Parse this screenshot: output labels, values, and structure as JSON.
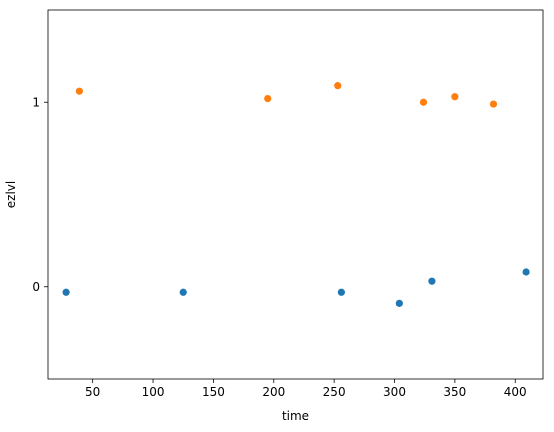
{
  "chart_data": {
    "type": "scatter",
    "title": "",
    "xlabel": "time",
    "ylabel": "ezlvl",
    "xlim": [
      13,
      423
    ],
    "ylim": [
      1.5,
      -0.5
    ],
    "y_axis_inverted": true,
    "y_categorical": true,
    "xticks": [
      50,
      100,
      150,
      200,
      250,
      300,
      350,
      400
    ],
    "yticks": [
      0,
      1
    ],
    "grid": false,
    "legend": "none",
    "series": [
      {
        "color": "#1f77b4",
        "points": [
          {
            "x": 28,
            "y": -0.03
          },
          {
            "x": 125,
            "y": -0.03
          },
          {
            "x": 256,
            "y": -0.03
          },
          {
            "x": 304,
            "y": -0.09
          },
          {
            "x": 331,
            "y": 0.03
          },
          {
            "x": 409,
            "y": 0.08
          }
        ]
      },
      {
        "color": "#ff7f0e",
        "points": [
          {
            "x": 39,
            "y": 1.06
          },
          {
            "x": 195,
            "y": 1.02
          },
          {
            "x": 253,
            "y": 1.09
          },
          {
            "x": 324,
            "y": 1.0
          },
          {
            "x": 350,
            "y": 1.03
          },
          {
            "x": 382,
            "y": 0.99
          }
        ]
      }
    ]
  }
}
